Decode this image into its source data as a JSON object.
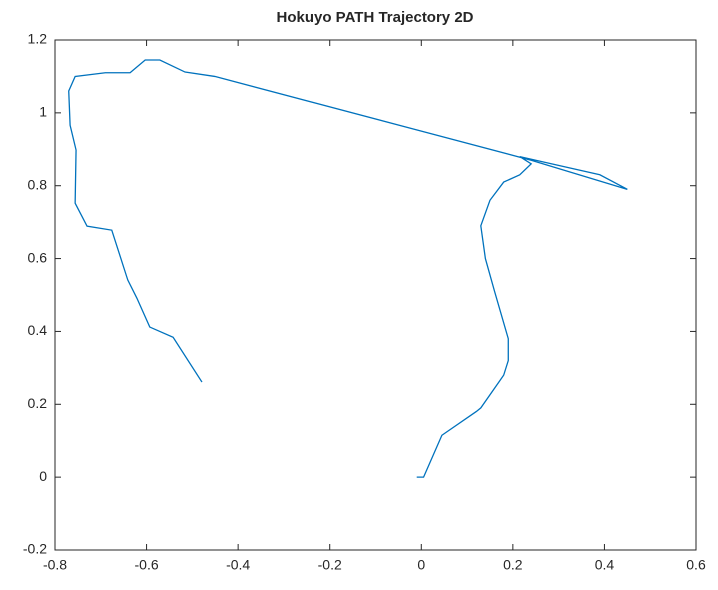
{
  "chart_data": {
    "type": "line",
    "title": "Hokuyo PATH Trajectory 2D",
    "series": [
      {
        "color": "#0072bd",
        "x": [
          -0.01,
          0.005,
          0.045,
          0.12,
          0.13,
          0.18,
          0.19,
          0.19,
          0.16,
          0.14,
          0.13,
          0.15,
          0.18,
          0.215,
          0.24,
          0.215,
          0.39,
          0.45,
          0.24,
          -0.451,
          -0.516,
          -0.571,
          -0.603,
          -0.636,
          -0.69,
          -0.756,
          -0.77,
          -0.767,
          -0.754,
          -0.756,
          -0.73,
          -0.676,
          -0.641,
          -0.621,
          -0.593,
          -0.542,
          -0.479
        ],
        "values": [
          0,
          0,
          0.115,
          0.18,
          0.19,
          0.28,
          0.32,
          0.38,
          0.51,
          0.6,
          0.69,
          0.76,
          0.81,
          0.83,
          0.86,
          0.88,
          0.83,
          0.79,
          0.87,
          1.1,
          1.112,
          1.145,
          1.145,
          1.11,
          1.11,
          1.1,
          1.06,
          0.966,
          0.898,
          0.752,
          0.689,
          0.678,
          0.541,
          0.491,
          0.412,
          0.384,
          0.261
        ]
      }
    ],
    "xlim": [
      -0.8,
      0.6
    ],
    "xticks": [
      {
        "value": -0.8,
        "label": "-0.8"
      },
      {
        "value": -0.6,
        "label": "-0.6"
      },
      {
        "value": -0.4,
        "label": "-0.4"
      },
      {
        "value": -0.2,
        "label": "-0.2"
      },
      0,
      0.2,
      0.4,
      0.6
    ],
    "ylim": [
      -0.2,
      1.2
    ],
    "yticks": [
      -0.2,
      0,
      0.2,
      0.4,
      0.6,
      0.8,
      1,
      1.2
    ]
  }
}
